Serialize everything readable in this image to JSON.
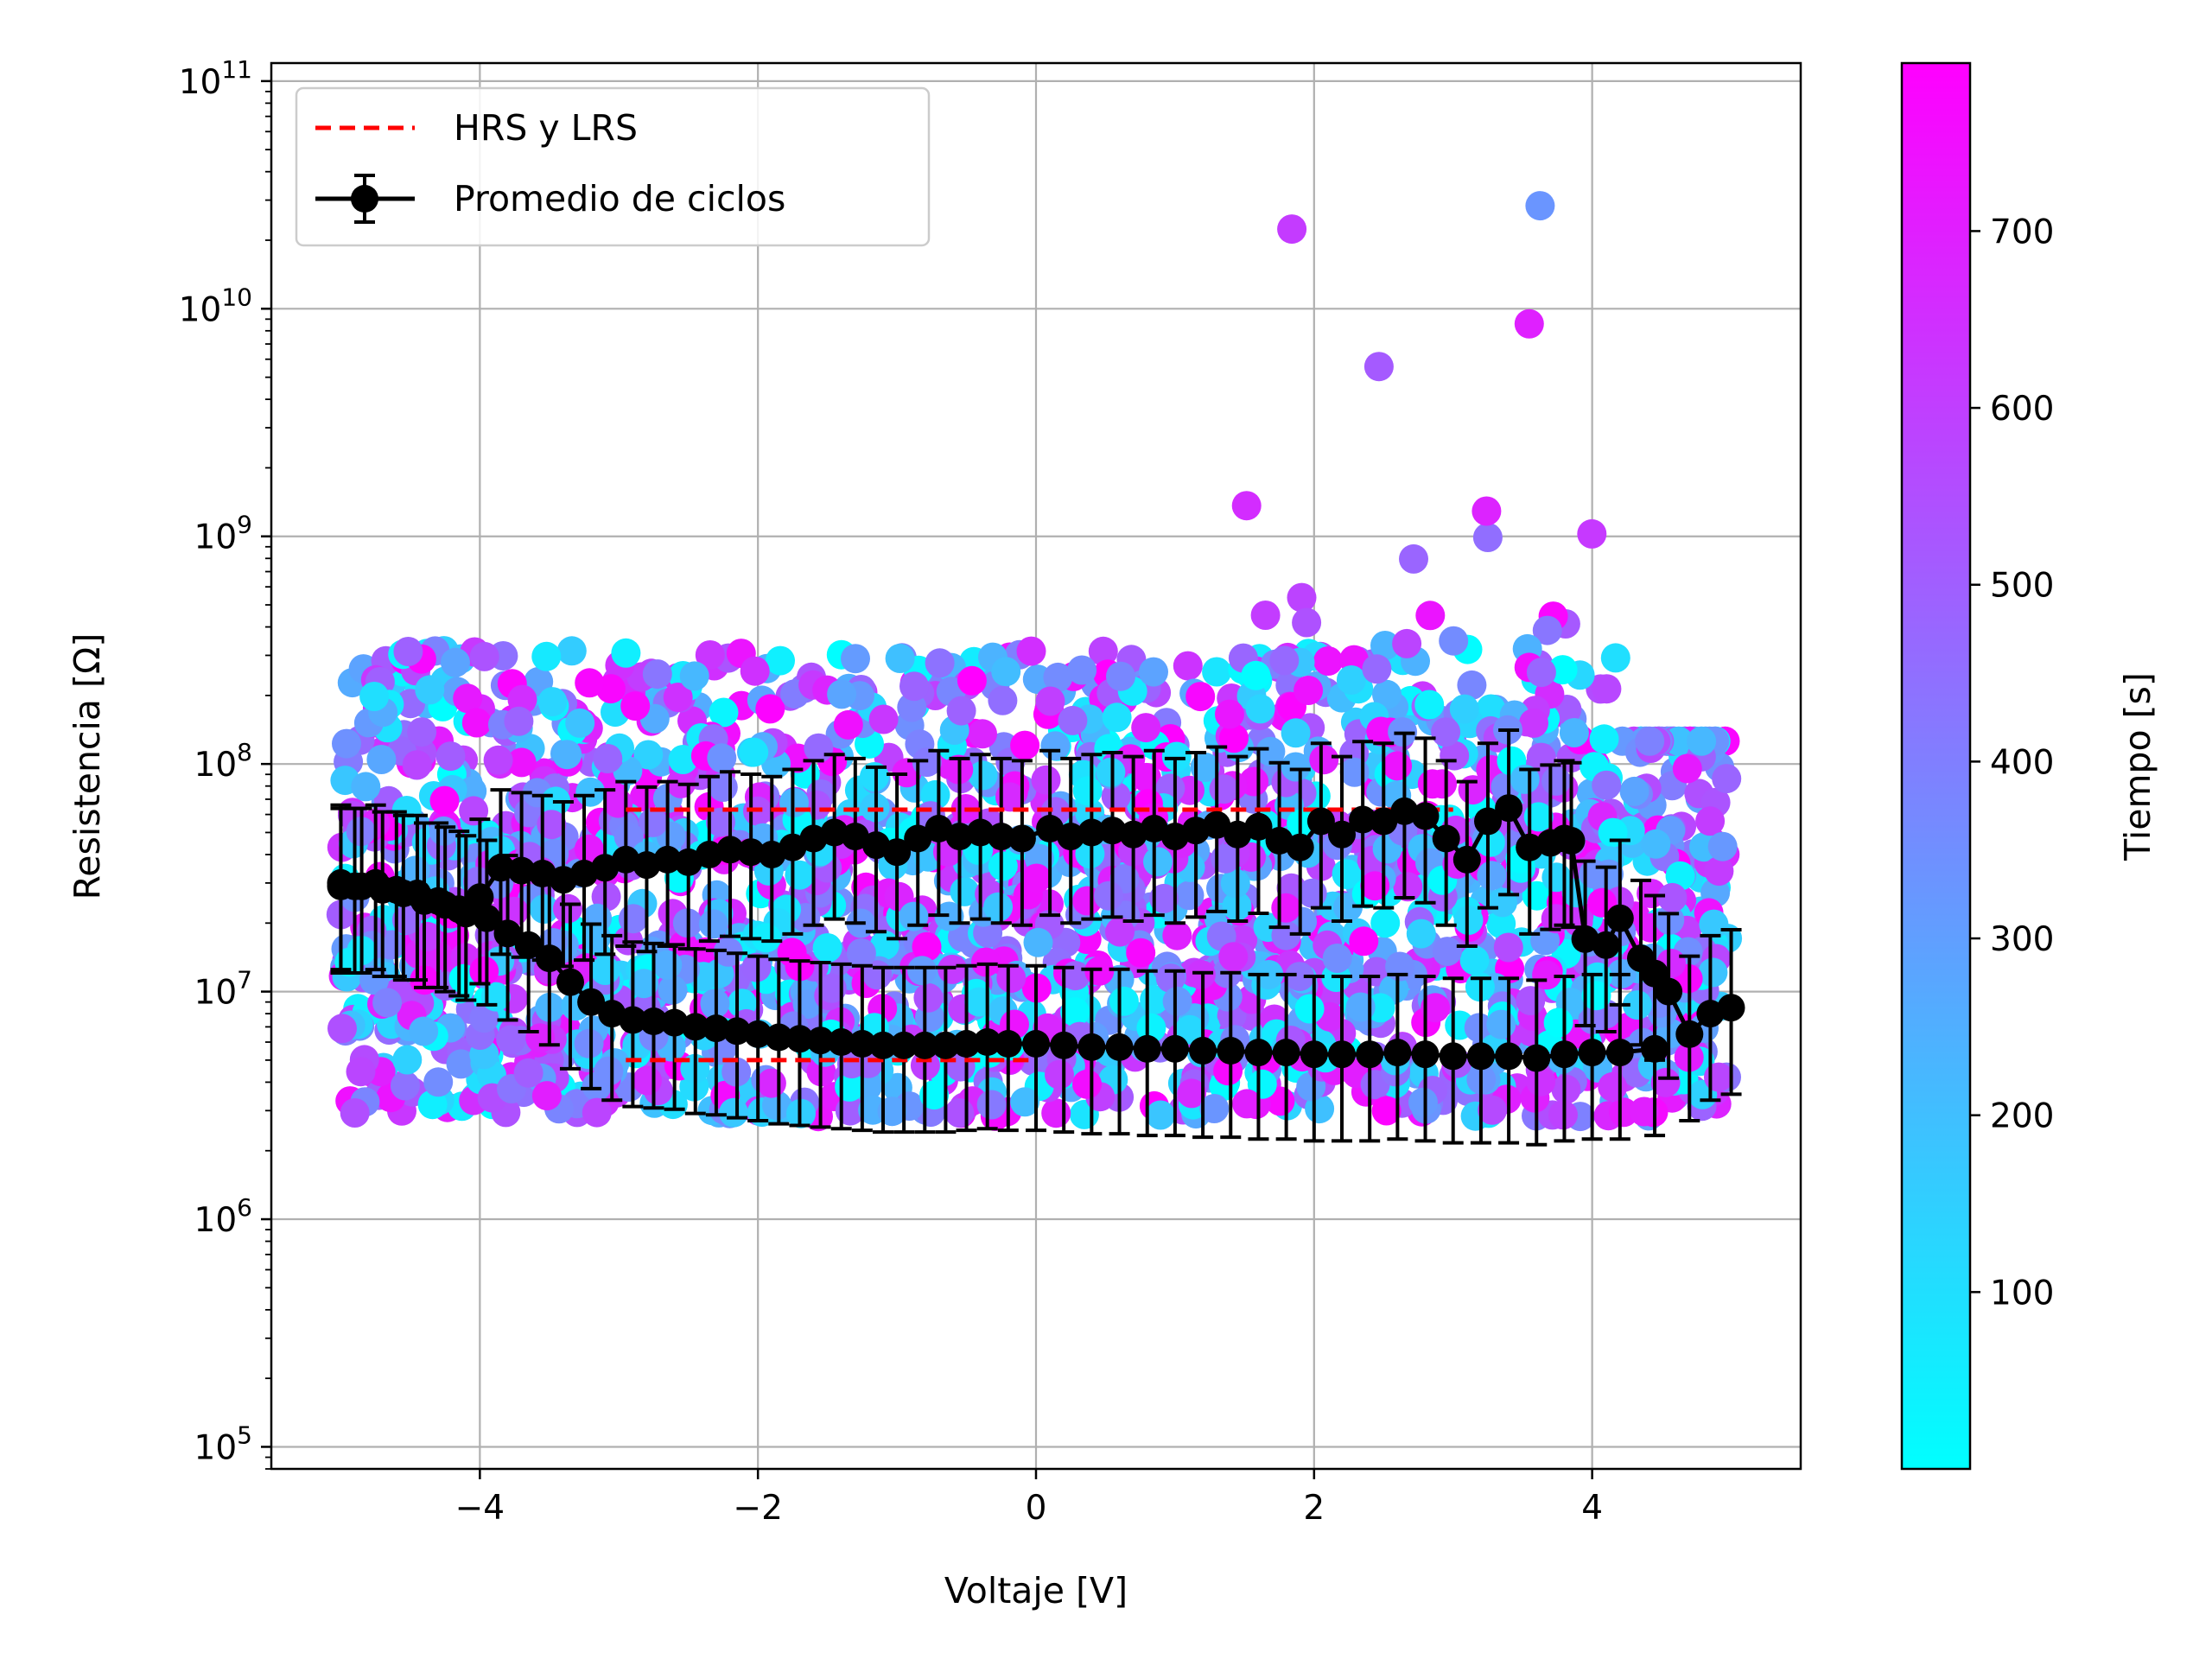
{
  "chart_data": {
    "type": "scatter",
    "xlabel": "Voltaje [V]",
    "ylabel": "Resistencia [Ω]",
    "xlim": [
      -5.5,
      5.5
    ],
    "ylim": [
      80000,
      120000000000
    ],
    "yscale": "log",
    "grid": true,
    "legend_position": "top-left",
    "x_ticks": [
      {
        "value": -4,
        "label": "−4"
      },
      {
        "value": -2,
        "label": "−2"
      },
      {
        "value": 0,
        "label": "0"
      },
      {
        "value": 2,
        "label": "2"
      },
      {
        "value": 4,
        "label": "4"
      }
    ],
    "y_ticks": [
      {
        "value": 100000,
        "base": "10",
        "exp": "5"
      },
      {
        "value": 1000000,
        "base": "10",
        "exp": "6"
      },
      {
        "value": 10000000,
        "base": "10",
        "exp": "7"
      },
      {
        "value": 100000000,
        "base": "10",
        "exp": "8"
      },
      {
        "value": 1000000000,
        "base": "10",
        "exp": "9"
      },
      {
        "value": 10000000000,
        "base": "10",
        "exp": "10"
      },
      {
        "value": 100000000000,
        "base": "10",
        "exp": "11"
      }
    ],
    "colorbar": {
      "label": "Tiempo [s]",
      "min": 0,
      "max": 795,
      "colormap": "cool",
      "color_low": "#00ffff",
      "color_high": "#ff00ff",
      "ticks": [
        {
          "value": 100,
          "label": "100"
        },
        {
          "value": 200,
          "label": "200"
        },
        {
          "value": 300,
          "label": "300"
        },
        {
          "value": 400,
          "label": "400"
        },
        {
          "value": 500,
          "label": "500"
        },
        {
          "value": 600,
          "label": "600"
        },
        {
          "value": 700,
          "label": "700"
        }
      ]
    },
    "legend": [
      {
        "label": "HRS y LRS",
        "style": "dashed-line",
        "color": "#ff0000"
      },
      {
        "label": "Promedio de ciclos",
        "style": "errorbar-marker",
        "color": "#000000"
      }
    ],
    "hrs_lrs": {
      "color": "#ff0000",
      "segments": [
        {
          "x": [
            -2.95,
            3.0
          ],
          "y": [
            63000000,
            63000000
          ]
        },
        {
          "x": [
            -2.95,
            0.0
          ],
          "y": [
            5000000,
            5000000
          ]
        }
      ]
    },
    "average_cycles": {
      "color": "#000000",
      "upper_branch": {
        "x": [
          -5.0,
          -4.9,
          -4.75,
          -4.6,
          -4.45,
          -4.3,
          -4.15,
          -4.0,
          -3.85,
          -3.7,
          -3.55,
          -3.4,
          -3.25,
          -3.1,
          -2.95,
          -2.8,
          -2.65,
          -2.5,
          -2.35,
          -2.2,
          -2.05,
          -1.9,
          -1.75,
          -1.6,
          -1.45,
          -1.3,
          -1.15,
          -1.0,
          -0.85,
          -0.7,
          -0.55,
          -0.4,
          -0.25,
          -0.1,
          0.1,
          0.25,
          0.4,
          0.55,
          0.7,
          0.85,
          1.0,
          1.15,
          1.3,
          1.45,
          1.6,
          1.75,
          1.9,
          2.05,
          2.2,
          2.35,
          2.5,
          2.65,
          2.8,
          2.95,
          3.1,
          3.25,
          3.4,
          3.55,
          3.7,
          3.8
        ],
        "y": [
          30000000,
          29000000,
          30000000,
          28000000,
          27000000,
          25000000,
          23000000,
          26000000,
          35000000,
          34000000,
          33000000,
          31000000,
          33000000,
          35000000,
          38000000,
          36000000,
          38000000,
          37000000,
          40000000,
          42000000,
          41000000,
          40000000,
          43000000,
          47000000,
          50000000,
          48000000,
          44000000,
          41000000,
          47000000,
          52000000,
          48000000,
          50000000,
          48000000,
          47000000,
          52000000,
          48000000,
          50000000,
          51000000,
          49000000,
          52000000,
          48000000,
          51000000,
          54000000,
          49000000,
          53000000,
          46000000,
          43000000,
          56000000,
          49000000,
          57000000,
          56000000,
          62000000,
          59000000,
          47000000,
          38000000,
          56000000,
          64000000,
          43000000,
          45000000,
          47000000
        ]
      },
      "lower_branch": {
        "x": [
          -5.0,
          -4.85,
          -4.7,
          -4.55,
          -4.4,
          -4.25,
          -4.1,
          -3.95,
          -3.8,
          -3.65,
          -3.5,
          -3.35,
          -3.2,
          -3.05,
          -2.9,
          -2.75,
          -2.6,
          -2.45,
          -2.3,
          -2.15,
          -2.0,
          -1.85,
          -1.7,
          -1.55,
          -1.4,
          -1.25,
          -1.1,
          -0.95,
          -0.8,
          -0.65,
          -0.5,
          -0.35,
          -0.2,
          0.0,
          0.2,
          0.4,
          0.6,
          0.8,
          1.0,
          1.2,
          1.4,
          1.6,
          1.8,
          2.0,
          2.2,
          2.4,
          2.6,
          2.8,
          3.0,
          3.2,
          3.4,
          3.6,
          3.8,
          4.0,
          4.2,
          4.45
        ],
        "y": [
          29000000,
          29000000,
          28000000,
          27000000,
          25000000,
          24000000,
          22000000,
          21000000,
          18000000,
          16000000,
          14000000,
          11000000,
          9000000,
          8000000,
          7500000,
          7400000,
          7300000,
          7000000,
          6900000,
          6700000,
          6500000,
          6300000,
          6200000,
          6100000,
          6000000,
          5900000,
          5800000,
          5800000,
          5800000,
          5800000,
          5900000,
          6000000,
          5900000,
          5900000,
          5800000,
          5700000,
          5700000,
          5600000,
          5600000,
          5500000,
          5500000,
          5400000,
          5400000,
          5300000,
          5300000,
          5300000,
          5400000,
          5300000,
          5200000,
          5200000,
          5200000,
          5100000,
          5300000,
          5400000,
          5400000,
          5600000
        ]
      },
      "right_branch": {
        "x": [
          3.85,
          3.95,
          4.1,
          4.2,
          4.35,
          4.45,
          4.55,
          4.7,
          4.85,
          5.0
        ],
        "y": [
          46000000,
          17000000,
          16000000,
          21000000,
          14000000,
          12000000,
          10000000,
          6500000,
          8000000,
          8500000
        ]
      }
    }
  }
}
